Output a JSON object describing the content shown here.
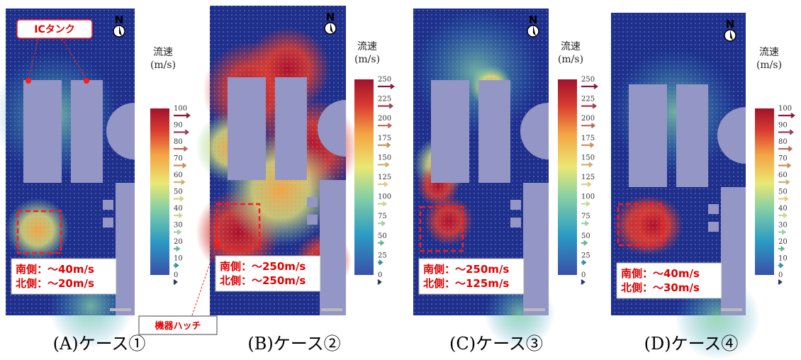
{
  "panels": [
    {
      "caption": "(A)ケース①",
      "north": "N",
      "legend_title": "流速",
      "legend_unit": "(m/s)",
      "legend_ticks": [
        100,
        90,
        80,
        70,
        60,
        50,
        40,
        30,
        20,
        10,
        0
      ],
      "notes": [
        "南側：～40m/s",
        "北側：～20m/s"
      ]
    },
    {
      "caption": "(B)ケース②",
      "north": "N",
      "legend_title": "流速",
      "legend_unit": "(m/s)",
      "legend_ticks": [
        250,
        225,
        200,
        175,
        150,
        125,
        100,
        75,
        50,
        25,
        0
      ],
      "notes": [
        "南側：～250m/s",
        "北側：～250m/s"
      ]
    },
    {
      "caption": "(C)ケース③",
      "north": "N",
      "legend_title": "流速",
      "legend_unit": "(m/s)",
      "legend_ticks": [
        250,
        225,
        200,
        175,
        150,
        125,
        100,
        75,
        50,
        25,
        0
      ],
      "notes": [
        "南側：～250m/s",
        "北側：～125m/s"
      ]
    },
    {
      "caption": "(D)ケース④",
      "north": "N",
      "legend_title": "流速",
      "legend_unit": "(m/s)",
      "legend_ticks": [
        100,
        90,
        80,
        70,
        60,
        50,
        40,
        30,
        20,
        10,
        0
      ],
      "notes": [
        "南側：～40m/s",
        "北側：～30m/s"
      ]
    }
  ],
  "labels": {
    "tank": "ICタンク",
    "hatch": "機器ハッチ"
  }
}
